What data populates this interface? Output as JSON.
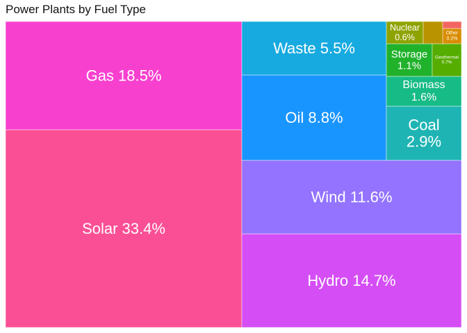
{
  "chart_data": {
    "type": "treemap",
    "title": "Power Plants by Fuel Type",
    "series": [
      {
        "name": "Solar",
        "value": 33.4,
        "color": "#fb4f95"
      },
      {
        "name": "Gas",
        "value": 18.5,
        "color": "#f840cf"
      },
      {
        "name": "Hydro",
        "value": 14.7,
        "color": "#d54ef5"
      },
      {
        "name": "Wind",
        "value": 11.6,
        "color": "#9373ff"
      },
      {
        "name": "Oil",
        "value": 8.8,
        "color": "#1995ff"
      },
      {
        "name": "Waste",
        "value": 5.5,
        "color": "#17aae0"
      },
      {
        "name": "Coal",
        "value": 2.9,
        "color": "#1fb4b4"
      },
      {
        "name": "Biomass",
        "value": 1.6,
        "color": "#17bb85"
      },
      {
        "name": "Storage",
        "value": 1.1,
        "color": "#21b22c"
      },
      {
        "name": "Geothermal",
        "value": 0.7,
        "color": "#55ad00"
      },
      {
        "name": "Nuclear",
        "value": 0.6,
        "color": "#8fa300"
      },
      {
        "name": "Other",
        "value": 0.2,
        "color": "#d98c00"
      }
    ],
    "unlabeled_tiles": [
      {
        "color": "#b99400"
      },
      {
        "color": "#f36560"
      }
    ]
  }
}
